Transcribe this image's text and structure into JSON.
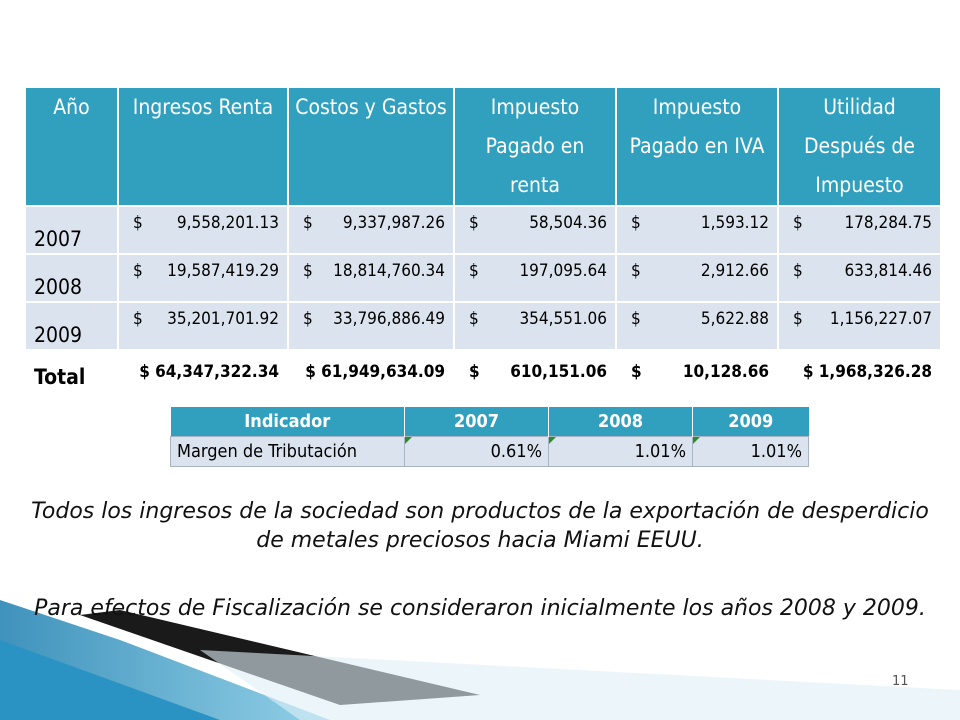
{
  "main_table": {
    "headers": [
      "Año",
      "Ingresos Renta",
      "Costos y Gastos",
      "Impuesto Pagado en renta",
      "Impuesto Pagado en IVA",
      "Utilidad Después de Impuesto"
    ],
    "currency": "$",
    "rows": [
      {
        "year": "2007",
        "values": [
          "9,558,201.13",
          "9,337,987.26",
          "58,504.36",
          "1,593.12",
          "178,284.75"
        ]
      },
      {
        "year": "2008",
        "values": [
          "19,587,419.29",
          "18,814,760.34",
          "197,095.64",
          "2,912.66",
          "633,814.46"
        ]
      },
      {
        "year": "2009",
        "values": [
          "35,201,701.92",
          "33,796,886.49",
          "354,551.06",
          "5,622.88",
          "1,156,227.07"
        ]
      }
    ],
    "total": {
      "label": "Total",
      "values": [
        "$ 64,347,322.34",
        "$ 61,949,634.09",
        "$",
        "610,151.06",
        "$",
        "10,128.66",
        "$ 1,968,326.28"
      ]
    }
  },
  "indicator_table": {
    "headers": [
      "Indicador",
      "2007",
      "2008",
      "2009"
    ],
    "row": {
      "label": "Margen de Tributación",
      "values": [
        "0.61%",
        "1.01%",
        "1.01%"
      ]
    }
  },
  "paragraphs": [
    "Todos los ingresos de la sociedad son productos de la exportación de desperdicio de metales preciosos hacia Miami EEUU.",
    "Para efectos de Fiscalización se consideraron inicialmente los años 2008 y 2009."
  ],
  "page_number": "11",
  "colors": {
    "header_blue": "#31a0bf",
    "cell_gray": "#dbe4ee",
    "accent_dark": "#1a1a1a"
  }
}
